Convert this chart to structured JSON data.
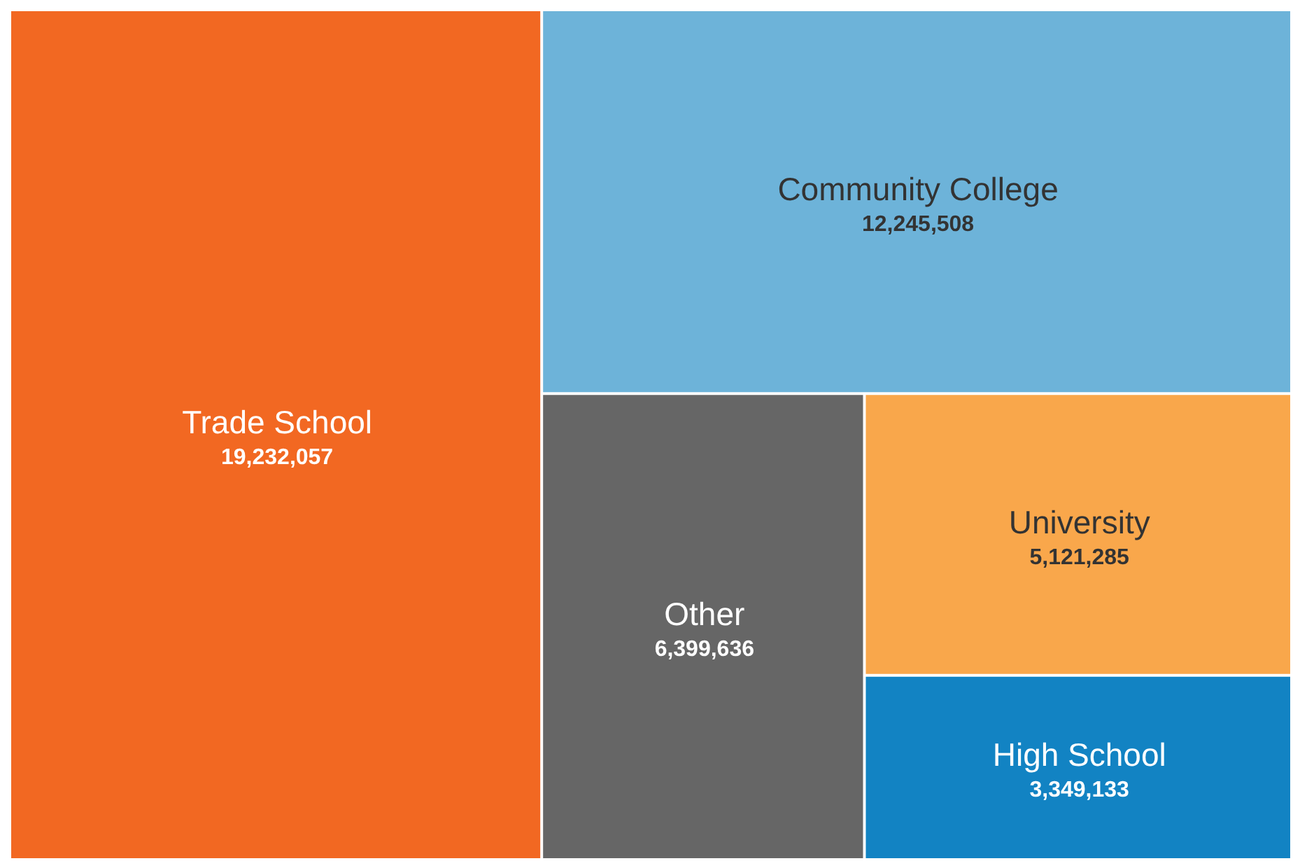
{
  "chart_data": {
    "type": "other",
    "categories": [
      "Trade School",
      "Community College",
      "Other",
      "University",
      "High School"
    ],
    "values": [
      19232057,
      12245508,
      6399636,
      5121285,
      3349133
    ],
    "value_labels": [
      "19,232,057",
      "12,245,508",
      "6,399,636",
      "5,121,285",
      "3,349,133"
    ],
    "colors": [
      "#f26822",
      "#6db3d9",
      "#666666",
      "#f9a74b",
      "#1283c3"
    ]
  }
}
